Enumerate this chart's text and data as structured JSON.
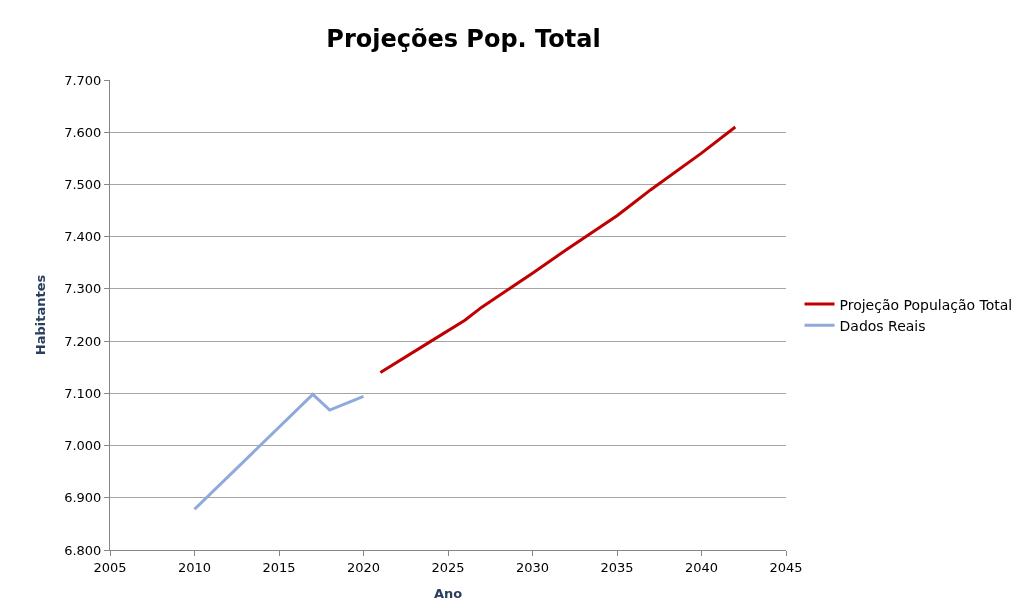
{
  "chart_data": {
    "type": "line",
    "title": "Projeções Pop. Total",
    "xlabel": "Ano",
    "ylabel": "Habitantes",
    "xlim": [
      2005,
      2045
    ],
    "xticks": [
      2005,
      2010,
      2015,
      2020,
      2025,
      2030,
      2035,
      2040,
      2045
    ],
    "ylim": [
      6.8,
      7.7
    ],
    "yticks": [
      {
        "value": 6.8,
        "label": "6.800"
      },
      {
        "value": 6.9,
        "label": "6.900"
      },
      {
        "value": 7.0,
        "label": "7.000"
      },
      {
        "value": 7.1,
        "label": "7.100"
      },
      {
        "value": 7.2,
        "label": "7.200"
      },
      {
        "value": 7.3,
        "label": "7.300"
      },
      {
        "value": 7.4,
        "label": "7.400"
      },
      {
        "value": 7.5,
        "label": "7.500"
      },
      {
        "value": 7.6,
        "label": "7.600"
      },
      {
        "value": 7.7,
        "label": "7.700"
      }
    ],
    "grid": "y",
    "legend": "right",
    "marker": "none",
    "line_style": "solid",
    "series": [
      {
        "name": "Projeção População Total",
        "color": "#c00000",
        "x": [
          2021,
          2024,
          2026,
          2027,
          2030,
          2032,
          2035,
          2036,
          2037,
          2040,
          2042
        ],
        "values": [
          7.14,
          7.2,
          7.24,
          7.265,
          7.33,
          7.375,
          7.44,
          7.465,
          7.49,
          7.56,
          7.61
        ]
      },
      {
        "name": "Dados Reais",
        "color": "#8eaadb",
        "x": [
          2010,
          2017,
          2018,
          2020
        ],
        "values": [
          6.878,
          7.098,
          7.068,
          7.094
        ]
      }
    ]
  }
}
